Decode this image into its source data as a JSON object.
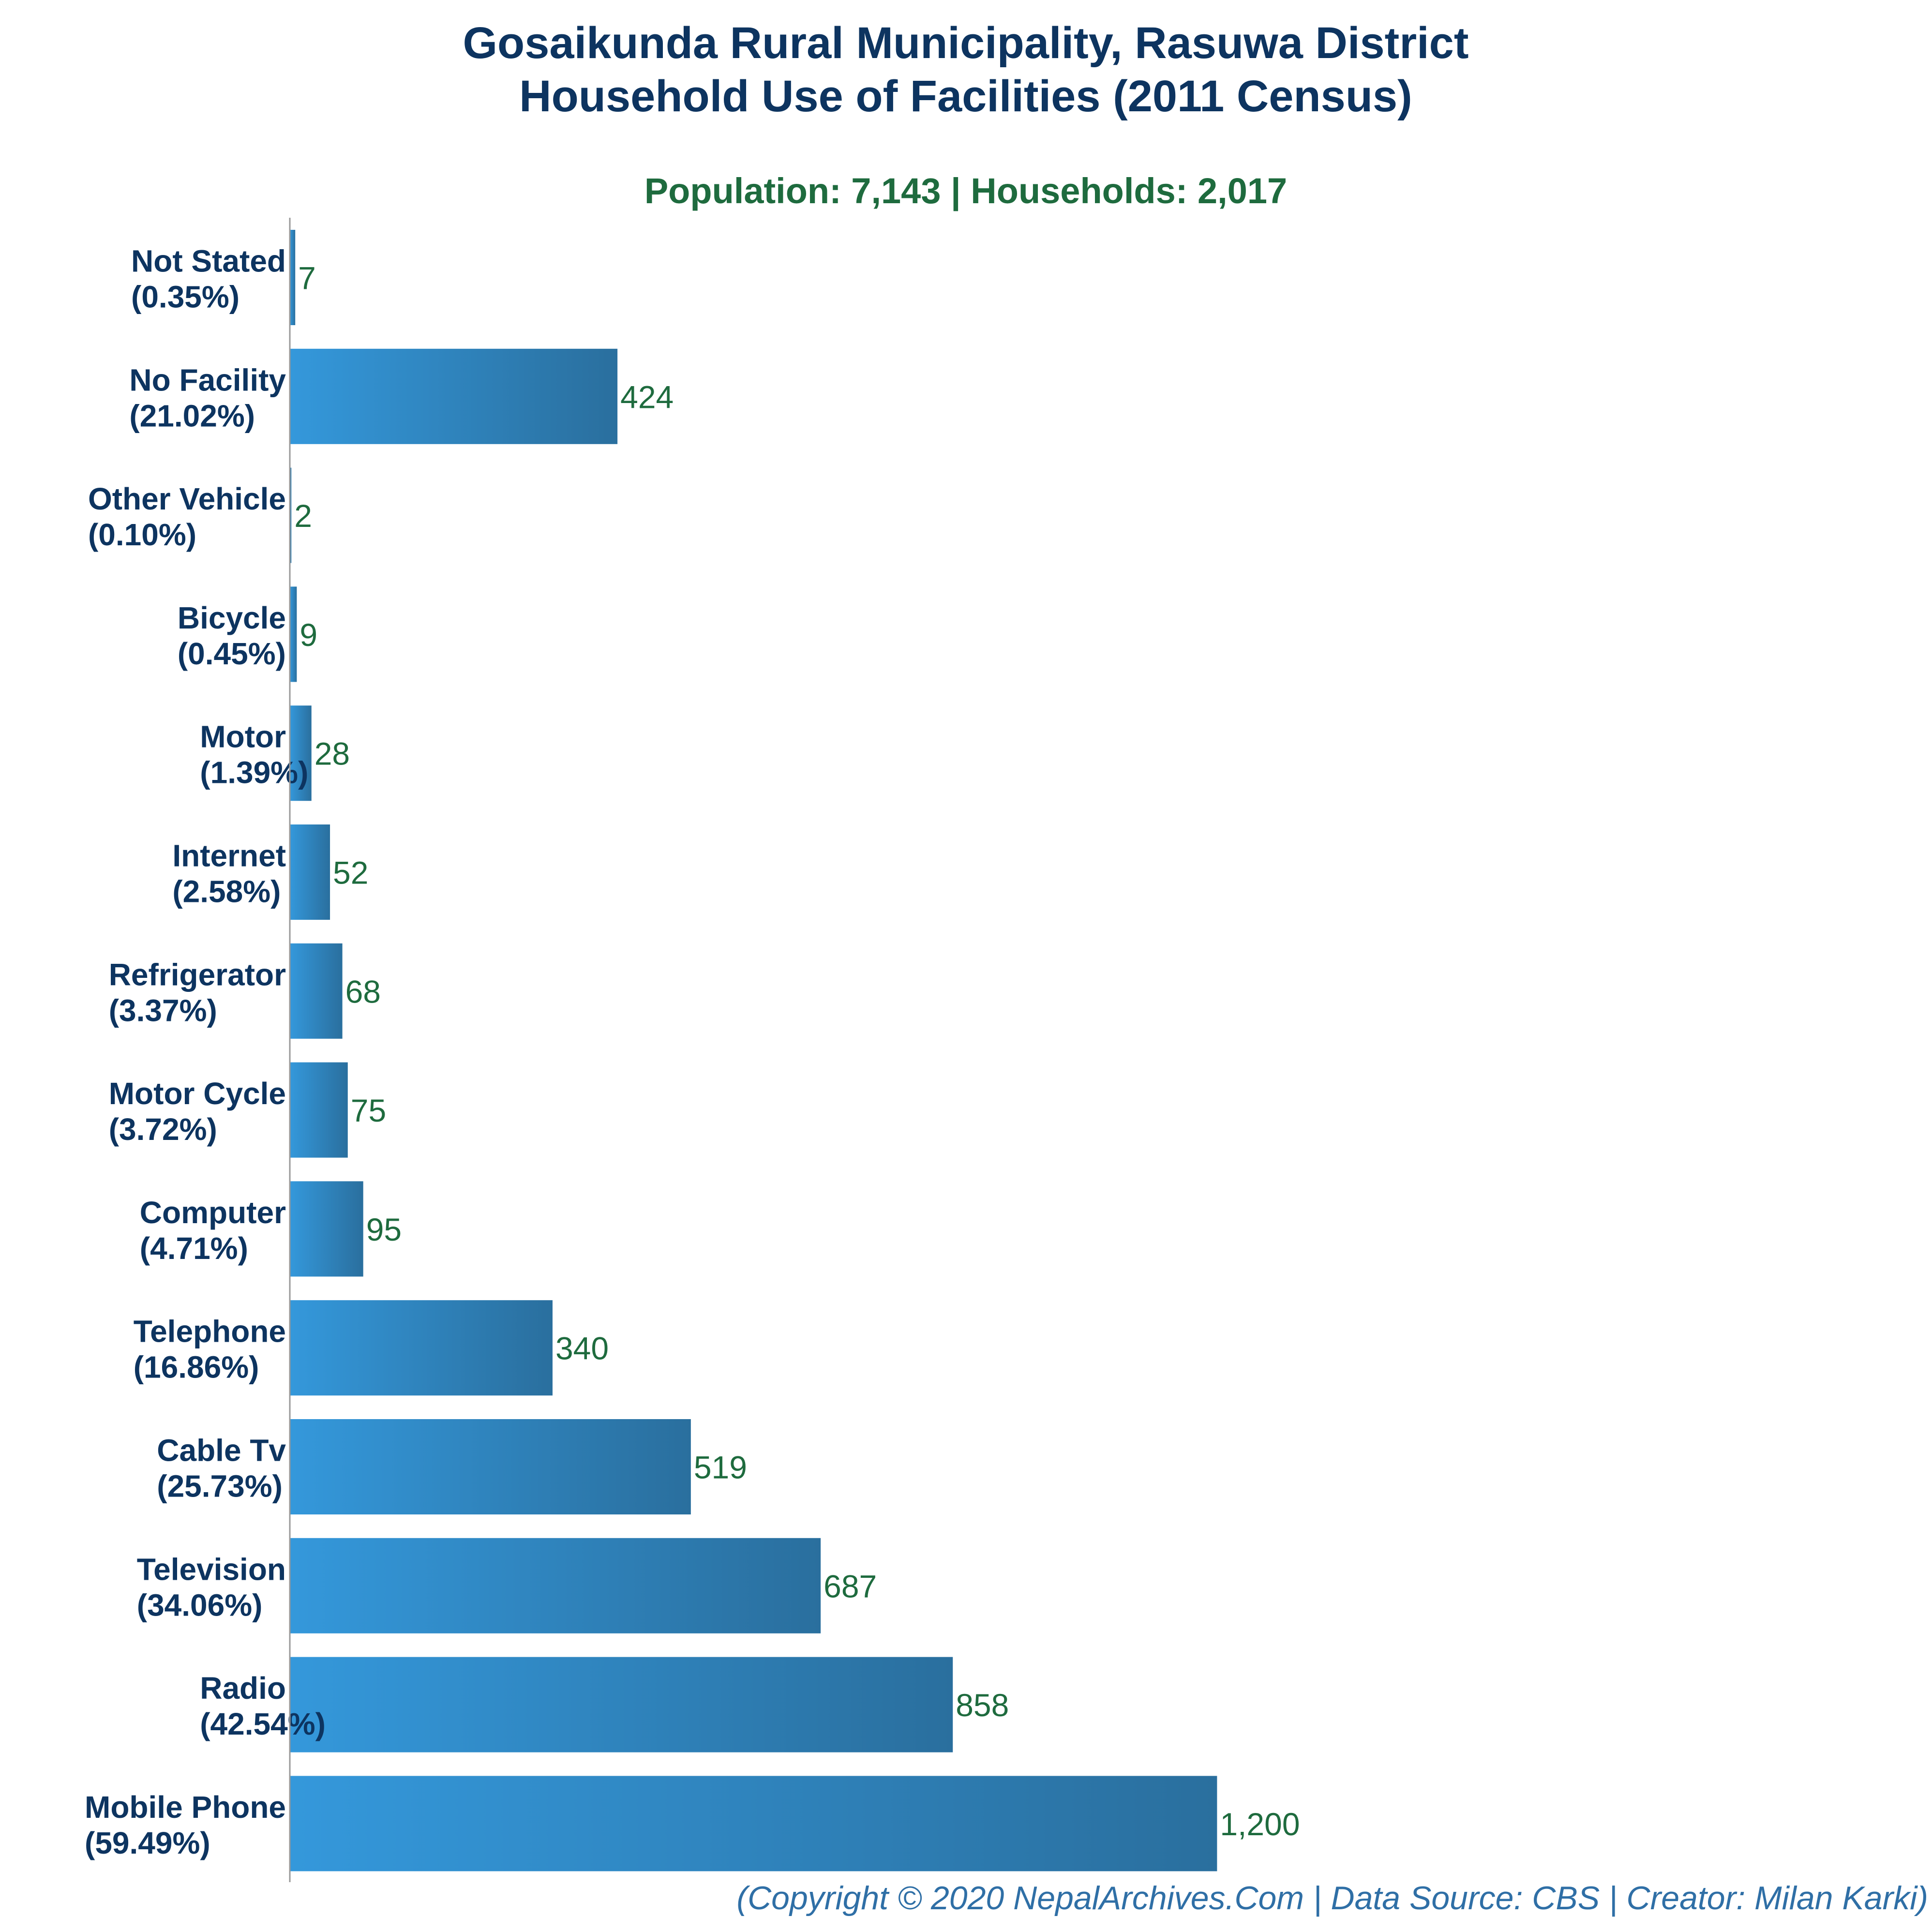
{
  "chart_data": {
    "type": "bar",
    "orientation": "horizontal",
    "title": [
      "Gosaikunda Rural Municipality, Rasuwa District",
      "Household Use of Facilities (2011 Census)"
    ],
    "subtitle": "Population: 7,143 | Households: 2,017",
    "xlabel": "",
    "ylabel": "",
    "grid": false,
    "categories": [
      {
        "name": "Not Stated",
        "pct": "(0.35%)",
        "value": 7,
        "value_label": "7"
      },
      {
        "name": "No Facility",
        "pct": "(21.02%)",
        "value": 424,
        "value_label": "424"
      },
      {
        "name": "Other Vehicle",
        "pct": "(0.10%)",
        "value": 2,
        "value_label": "2"
      },
      {
        "name": "Bicycle",
        "pct": "(0.45%)",
        "value": 9,
        "value_label": "9"
      },
      {
        "name": "Motor",
        "pct": "(1.39%)",
        "value": 28,
        "value_label": "28"
      },
      {
        "name": "Internet",
        "pct": "(2.58%)",
        "value": 52,
        "value_label": "52"
      },
      {
        "name": "Refrigerator",
        "pct": "(3.37%)",
        "value": 68,
        "value_label": "68"
      },
      {
        "name": "Motor Cycle",
        "pct": "(3.72%)",
        "value": 75,
        "value_label": "75"
      },
      {
        "name": "Computer",
        "pct": "(4.71%)",
        "value": 95,
        "value_label": "95"
      },
      {
        "name": "Telephone",
        "pct": "(16.86%)",
        "value": 340,
        "value_label": "340"
      },
      {
        "name": "Cable Tv",
        "pct": "(25.73%)",
        "value": 519,
        "value_label": "519"
      },
      {
        "name": "Television",
        "pct": "(34.06%)",
        "value": 687,
        "value_label": "687"
      },
      {
        "name": "Radio",
        "pct": "(42.54%)",
        "value": 858,
        "value_label": "858"
      },
      {
        "name": "Mobile Phone",
        "pct": "(59.49%)",
        "value": 1200,
        "value_label": "1,200"
      }
    ],
    "xlim": [
      0,
      2400
    ],
    "colors": {
      "bar_start": "#3498db",
      "bar_end": "#2a6f9e",
      "axis": "#999999"
    }
  },
  "footer": "(Copyright © 2020 NepalArchives.Com | Data Source: CBS | Creator: Milan Karki)"
}
